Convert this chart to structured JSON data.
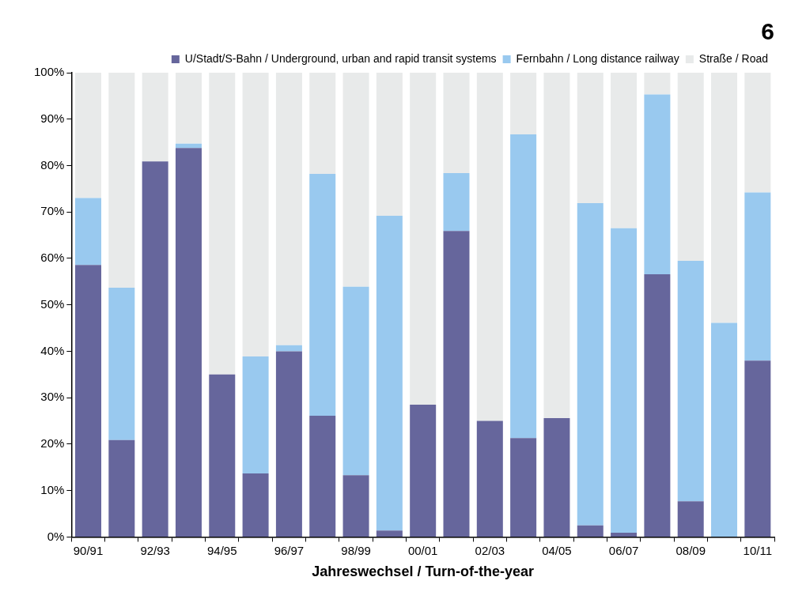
{
  "chart_data": {
    "type": "bar",
    "stacked": true,
    "title": "6",
    "xlabel": "Jahreswechsel / Turn-of-the-year",
    "categories": [
      "90/91",
      null,
      "92/93",
      null,
      "94/95",
      null,
      "96/97",
      null,
      "98/99",
      null,
      "00/01",
      null,
      "02/03",
      null,
      "04/05",
      null,
      "06/07",
      null,
      "08/09",
      null,
      "10/11"
    ],
    "series": [
      {
        "name": "U/Stadt/S-Bahn / Underground, urban and rapid transit systems",
        "color": "#66669c",
        "values": [
          58.6,
          20.9,
          80.9,
          83.8,
          35.0,
          13.7,
          40.0,
          26.1,
          13.3,
          1.4,
          28.5,
          65.9,
          25.0,
          21.3,
          25.6,
          2.5,
          0.9,
          56.6,
          7.7,
          0,
          38.0
        ]
      },
      {
        "name": "Fernbahn / Long distance railway",
        "color": "#99c9ef",
        "values": [
          14.4,
          32.8,
          0,
          0.9,
          0,
          25.2,
          1.3,
          52.1,
          40.6,
          67.8,
          0,
          12.5,
          0,
          65.4,
          0,
          69.4,
          65.6,
          38.7,
          51.8,
          46.1,
          36.2
        ]
      },
      {
        "name": "Straße / Road",
        "color": "#e8eaea",
        "values": [
          27.0,
          46.3,
          19.1,
          15.3,
          65.0,
          61.1,
          58.7,
          21.8,
          46.1,
          30.8,
          71.5,
          21.6,
          75.0,
          13.3,
          74.4,
          28.1,
          33.5,
          4.7,
          40.5,
          53.9,
          25.8
        ]
      }
    ],
    "ylim": [
      0,
      100
    ],
    "yticks": [
      {
        "value": 0,
        "label": "0%"
      },
      {
        "value": 10,
        "label": "10%"
      },
      {
        "value": 20,
        "label": "20%"
      },
      {
        "value": 30,
        "label": "30%"
      },
      {
        "value": 40,
        "label": "40%"
      },
      {
        "value": 50,
        "label": "50%"
      },
      {
        "value": 60,
        "label": "60%"
      },
      {
        "value": 70,
        "label": "70%"
      },
      {
        "value": 80,
        "label": "80%"
      },
      {
        "value": 90,
        "label": "90%"
      },
      {
        "value": 100,
        "label": "100%"
      }
    ],
    "legend": "top right",
    "grid": false
  }
}
